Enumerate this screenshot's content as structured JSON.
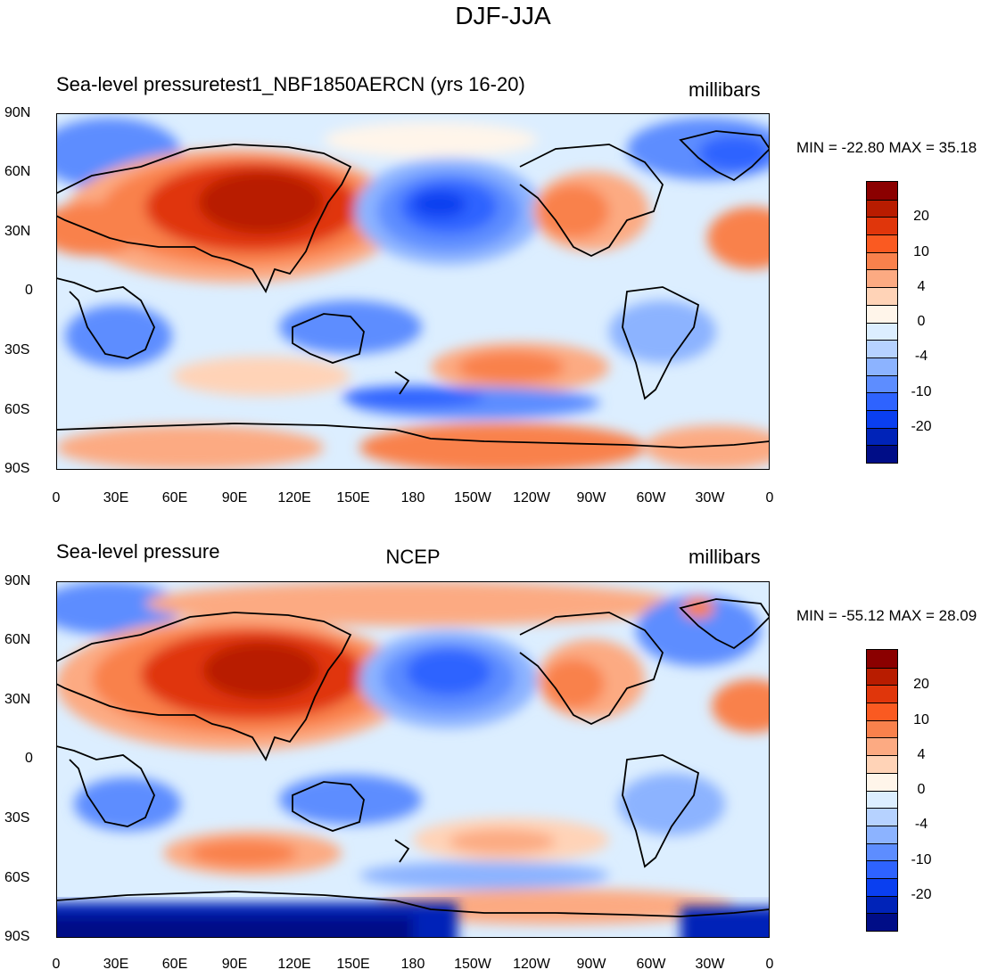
{
  "figure_title": "DJF-JJA",
  "panels": [
    {
      "left_title": "Sea-level pressuretest1_NBF1850AERCN (yrs 16-20)",
      "center_title": "",
      "units": "millibars",
      "min_max": "MIN = -22.80 MAX =  35.18",
      "min": -22.8,
      "max": 35.18
    },
    {
      "left_title": "Sea-level pressure",
      "center_title": "NCEP",
      "units": "millibars",
      "min_max": "MIN = -55.12 MAX =  28.09",
      "min": -55.12,
      "max": 28.09
    }
  ],
  "lat_labels": [
    "90N",
    "60N",
    "30N",
    "0",
    "30S",
    "60S",
    "90S"
  ],
  "lon_labels": [
    "0",
    "30E",
    "60E",
    "90E",
    "120E",
    "150E",
    "180",
    "150W",
    "120W",
    "90W",
    "60W",
    "30W",
    "0"
  ],
  "colorbar": {
    "labels": [
      "20",
      "10",
      "4",
      "0",
      "-4",
      "-10",
      "-20"
    ],
    "colors": [
      "#8b0000",
      "#b81c00",
      "#e0360b",
      "#fa5a21",
      "#f9814c",
      "#fcaa82",
      "#ffd3b7",
      "#fff5ea",
      "#dceeff",
      "#b6d2ff",
      "#8cb3ff",
      "#5d8dff",
      "#2e63ff",
      "#0a3ff0",
      "#0023b8",
      "#000d87"
    ]
  },
  "chart_data": {
    "type": "contour-map",
    "title": "DJF-JJA",
    "projection": "cylindrical equidistant",
    "variable": "Sea-level pressure",
    "units": "millibars",
    "contour_levels": [
      -30,
      -25,
      -20,
      -15,
      -10,
      -7,
      -4,
      -2,
      0,
      2,
      4,
      7,
      10,
      15,
      20,
      25
    ],
    "xlim": [
      0,
      360
    ],
    "ylim": [
      -90,
      90
    ],
    "panels": [
      {
        "name": "test1_NBF1850AERCN (yrs 16-20)",
        "min": -22.8,
        "max": 35.18
      },
      {
        "name": "NCEP",
        "min": -55.12,
        "max": 28.09
      }
    ]
  }
}
